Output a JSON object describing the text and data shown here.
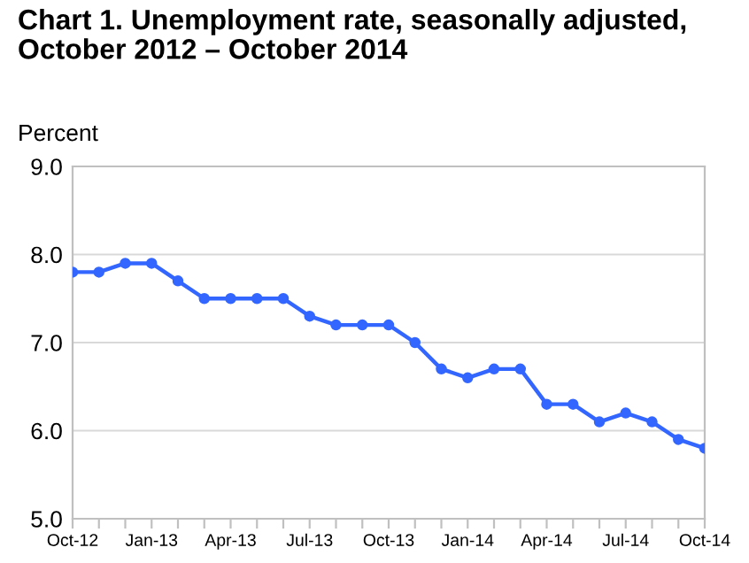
{
  "chart_data": {
    "type": "line",
    "title": "Chart 1. Unemployment rate, seasonally adjusted,\nOctober 2012 – October 2014",
    "ylabel": "Percent",
    "categories": [
      "Oct-12",
      null,
      null,
      "Jan-13",
      null,
      null,
      "Apr-13",
      null,
      null,
      "Jul-13",
      null,
      null,
      "Oct-13",
      null,
      null,
      "Jan-14",
      null,
      null,
      "Apr-14",
      null,
      null,
      "Jul-14",
      null,
      null,
      "Oct-14"
    ],
    "series": [
      {
        "color": "#3366ff",
        "values": [
          7.8,
          7.8,
          7.9,
          7.9,
          7.7,
          7.5,
          7.5,
          7.5,
          7.5,
          7.3,
          7.2,
          7.2,
          7.2,
          7.0,
          6.7,
          6.6,
          6.7,
          6.7,
          6.3,
          6.3,
          6.1,
          6.2,
          6.1,
          5.9,
          5.8
        ]
      }
    ],
    "ylim": [
      5.0,
      9.0
    ],
    "yticks": [
      {
        "value": 5,
        "label": "5.0"
      },
      {
        "value": 6,
        "label": "6.0"
      },
      {
        "value": 7,
        "label": "7.0"
      },
      {
        "value": 8,
        "label": "8.0"
      },
      {
        "value": 9,
        "label": "9.0"
      }
    ],
    "grid": "y",
    "marker": "circle",
    "line_style": "solid"
  }
}
